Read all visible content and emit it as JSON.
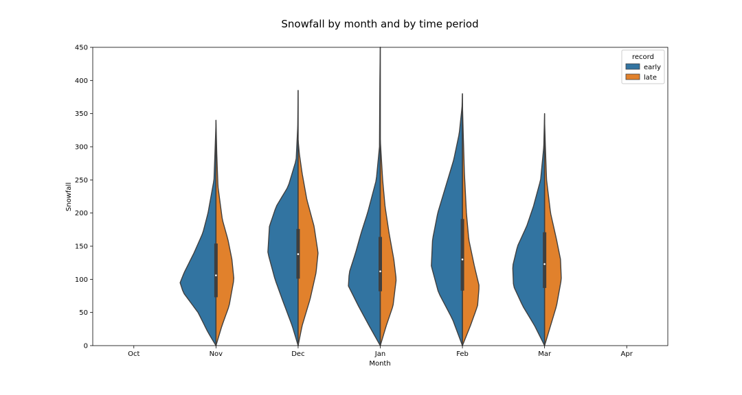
{
  "chart_data": {
    "type": "violin",
    "title": "Snowfall by month and by time period",
    "xlabel": "Month",
    "ylabel": "Snowfall",
    "categories": [
      "Oct",
      "Nov",
      "Dec",
      "Jan",
      "Feb",
      "Mar",
      "Apr"
    ],
    "ylim": [
      0,
      450
    ],
    "yticks": [
      0,
      50,
      100,
      150,
      200,
      250,
      300,
      350,
      400,
      450
    ],
    "grid": false,
    "split": true,
    "legend": {
      "title": "record",
      "position": "top-right"
    },
    "series": [
      {
        "name": "early",
        "color": "#3274a1",
        "violins": [
          {
            "category": "Nov",
            "min": 0,
            "max": 335,
            "median": 106,
            "q1": 73,
            "q3": 154,
            "profile": [
              [
                0,
                0.0
              ],
              [
                20,
                0.2
              ],
              [
                50,
                0.45
              ],
              [
                80,
                0.82
              ],
              [
                95,
                0.9
              ],
              [
                110,
                0.8
              ],
              [
                140,
                0.55
              ],
              [
                170,
                0.33
              ],
              [
                200,
                0.2
              ],
              [
                250,
                0.05
              ],
              [
                300,
                0.02
              ],
              [
                335,
                0
              ]
            ]
          },
          {
            "category": "Dec",
            "min": 0,
            "max": 385,
            "median": 138,
            "q1": 101,
            "q3": 176,
            "profile": [
              [
                0,
                0.0
              ],
              [
                30,
                0.15
              ],
              [
                70,
                0.4
              ],
              [
                100,
                0.58
              ],
              [
                140,
                0.76
              ],
              [
                180,
                0.72
              ],
              [
                210,
                0.55
              ],
              [
                240,
                0.25
              ],
              [
                280,
                0.05
              ],
              [
                330,
                0.01
              ],
              [
                385,
                0
              ]
            ]
          },
          {
            "category": "Jan",
            "min": 0,
            "max": 450,
            "median": 112,
            "q1": 82,
            "q3": 164,
            "profile": [
              [
                0,
                0.0
              ],
              [
                30,
                0.28
              ],
              [
                60,
                0.55
              ],
              [
                90,
                0.8
              ],
              [
                110,
                0.78
              ],
              [
                140,
                0.62
              ],
              [
                170,
                0.48
              ],
              [
                200,
                0.32
              ],
              [
                250,
                0.1
              ],
              [
                300,
                0.02
              ],
              [
                400,
                0.01
              ],
              [
                450,
                0
              ]
            ]
          },
          {
            "category": "Feb",
            "min": 0,
            "max": 380,
            "median": 130,
            "q1": 83,
            "q3": 191,
            "profile": [
              [
                0,
                0.0
              ],
              [
                40,
                0.25
              ],
              [
                80,
                0.6
              ],
              [
                120,
                0.78
              ],
              [
                160,
                0.75
              ],
              [
                200,
                0.62
              ],
              [
                240,
                0.42
              ],
              [
                280,
                0.22
              ],
              [
                320,
                0.08
              ],
              [
                360,
                0.01
              ],
              [
                380,
                0
              ]
            ]
          },
          {
            "category": "Mar",
            "min": 0,
            "max": 350,
            "median": 123,
            "q1": 87,
            "q3": 171,
            "profile": [
              [
                0,
                0.0
              ],
              [
                30,
                0.25
              ],
              [
                60,
                0.55
              ],
              [
                90,
                0.78
              ],
              [
                120,
                0.8
              ],
              [
                150,
                0.68
              ],
              [
                180,
                0.45
              ],
              [
                210,
                0.28
              ],
              [
                250,
                0.1
              ],
              [
                300,
                0.02
              ],
              [
                350,
                0
              ]
            ]
          }
        ]
      },
      {
        "name": "late",
        "color": "#e1812c",
        "violins": [
          {
            "category": "Nov",
            "min": 0,
            "max": 340,
            "median": 106,
            "q1": 73,
            "q3": 154,
            "profile": [
              [
                0,
                0.0
              ],
              [
                30,
                0.15
              ],
              [
                60,
                0.33
              ],
              [
                100,
                0.45
              ],
              [
                130,
                0.4
              ],
              [
                160,
                0.3
              ],
              [
                190,
                0.16
              ],
              [
                240,
                0.05
              ],
              [
                290,
                0.02
              ],
              [
                340,
                0
              ]
            ]
          },
          {
            "category": "Dec",
            "min": 0,
            "max": 310,
            "median": 138,
            "q1": 101,
            "q3": 176,
            "profile": [
              [
                0,
                0.0
              ],
              [
                30,
                0.1
              ],
              [
                70,
                0.3
              ],
              [
                110,
                0.45
              ],
              [
                140,
                0.5
              ],
              [
                180,
                0.4
              ],
              [
                220,
                0.22
              ],
              [
                260,
                0.1
              ],
              [
                290,
                0.03
              ],
              [
                310,
                0
              ]
            ]
          },
          {
            "category": "Jan",
            "min": 0,
            "max": 310,
            "median": 112,
            "q1": 82,
            "q3": 164,
            "profile": [
              [
                0,
                0.0
              ],
              [
                30,
                0.15
              ],
              [
                60,
                0.32
              ],
              [
                100,
                0.4
              ],
              [
                130,
                0.34
              ],
              [
                170,
                0.22
              ],
              [
                210,
                0.12
              ],
              [
                250,
                0.06
              ],
              [
                290,
                0.02
              ],
              [
                310,
                0
              ]
            ]
          },
          {
            "category": "Feb",
            "min": 0,
            "max": 365,
            "median": 130,
            "q1": 83,
            "q3": 191,
            "profile": [
              [
                0,
                0.0
              ],
              [
                30,
                0.2
              ],
              [
                60,
                0.38
              ],
              [
                90,
                0.42
              ],
              [
                120,
                0.3
              ],
              [
                160,
                0.16
              ],
              [
                200,
                0.1
              ],
              [
                260,
                0.05
              ],
              [
                320,
                0.02
              ],
              [
                365,
                0
              ]
            ]
          },
          {
            "category": "Mar",
            "min": 0,
            "max": 340,
            "median": 123,
            "q1": 87,
            "q3": 171,
            "profile": [
              [
                0,
                0.0
              ],
              [
                30,
                0.15
              ],
              [
                60,
                0.3
              ],
              [
                100,
                0.42
              ],
              [
                130,
                0.4
              ],
              [
                160,
                0.3
              ],
              [
                200,
                0.15
              ],
              [
                250,
                0.05
              ],
              [
                300,
                0.02
              ],
              [
                340,
                0
              ]
            ]
          }
        ]
      }
    ]
  }
}
